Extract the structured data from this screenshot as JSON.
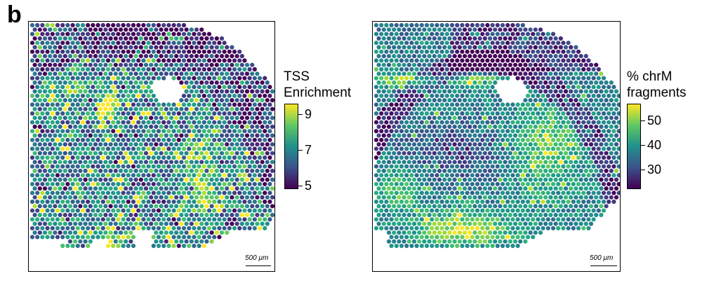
{
  "panel_label": "b",
  "chart_data": [
    {
      "type": "heatmap",
      "title": "",
      "colormap": "viridis",
      "colorbar": {
        "title_lines": [
          "TSS",
          "Enrichment"
        ],
        "range": [
          4.8,
          9.6
        ],
        "ticks": [
          9,
          7,
          5
        ]
      },
      "scale_bar": "500 μm",
      "colors": {
        "low": "#440154",
        "mid": "#21908d",
        "high": "#fde725",
        "hole": "#ffffff"
      }
    },
    {
      "type": "heatmap",
      "title": "",
      "colormap": "viridis",
      "colorbar": {
        "title_lines": [
          "% chrM",
          "fragments"
        ],
        "range": [
          22,
          57
        ],
        "ticks": [
          50,
          40,
          30
        ]
      },
      "scale_bar": "500 μm",
      "colors": {
        "low": "#440154",
        "mid": "#21908d",
        "high": "#fde725",
        "hole": "#ffffff"
      }
    }
  ]
}
